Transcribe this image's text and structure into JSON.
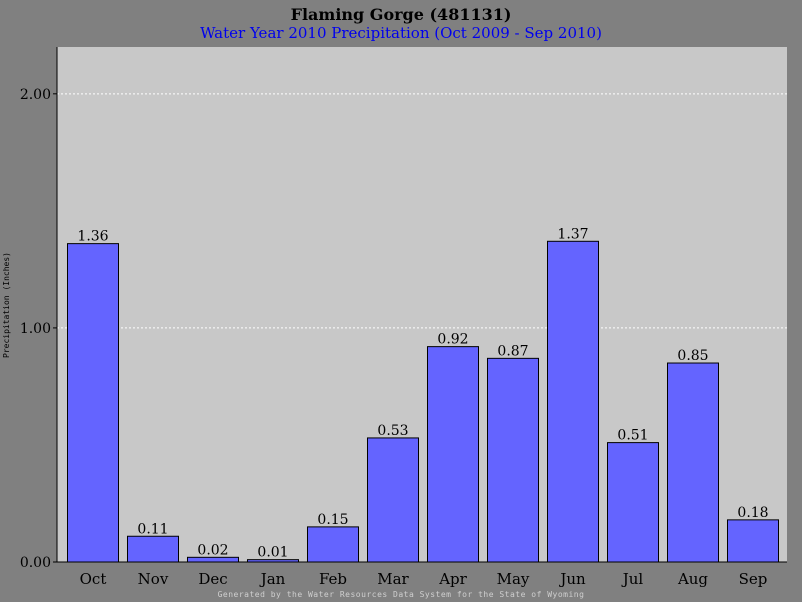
{
  "header": {
    "title": "Flaming Gorge (481131)",
    "subtitle": "Water Year 2010 Precipitation (Oct 2009 - Sep 2010)"
  },
  "footer": {
    "text": "Generated by the Water Resources Data System for the State of Wyoming"
  },
  "colors": {
    "page_background": "#808080",
    "plot_background": "#c8c8c8",
    "bar_fill": "#6464ff",
    "bar_stroke": "#000000",
    "gridline": "#ffffff",
    "subtitle_text": "#0000ee"
  },
  "chart_data": {
    "type": "bar",
    "title": "Flaming Gorge (481131)",
    "subtitle": "Water Year 2010 Precipitation (Oct 2009 - Sep 2010)",
    "xlabel": "",
    "ylabel": "Precipitation (Inches)",
    "categories": [
      "Oct",
      "Nov",
      "Dec",
      "Jan",
      "Feb",
      "Mar",
      "Apr",
      "May",
      "Jun",
      "Jul",
      "Aug",
      "Sep"
    ],
    "values": [
      1.36,
      0.11,
      0.02,
      0.01,
      0.15,
      0.53,
      0.92,
      0.87,
      1.37,
      0.51,
      0.85,
      0.18
    ],
    "data_labels": [
      "1.36",
      "0.11",
      "0.02",
      "0.01",
      "0.15",
      "0.53",
      "0.92",
      "0.87",
      "1.37",
      "0.51",
      "0.85",
      "0.18"
    ],
    "yticks": [
      0,
      1,
      2
    ],
    "ytick_labels": [
      "0.00",
      "1.00",
      "2.00"
    ],
    "ylim": [
      0,
      2.2
    ],
    "grid": true,
    "legend": "none"
  }
}
